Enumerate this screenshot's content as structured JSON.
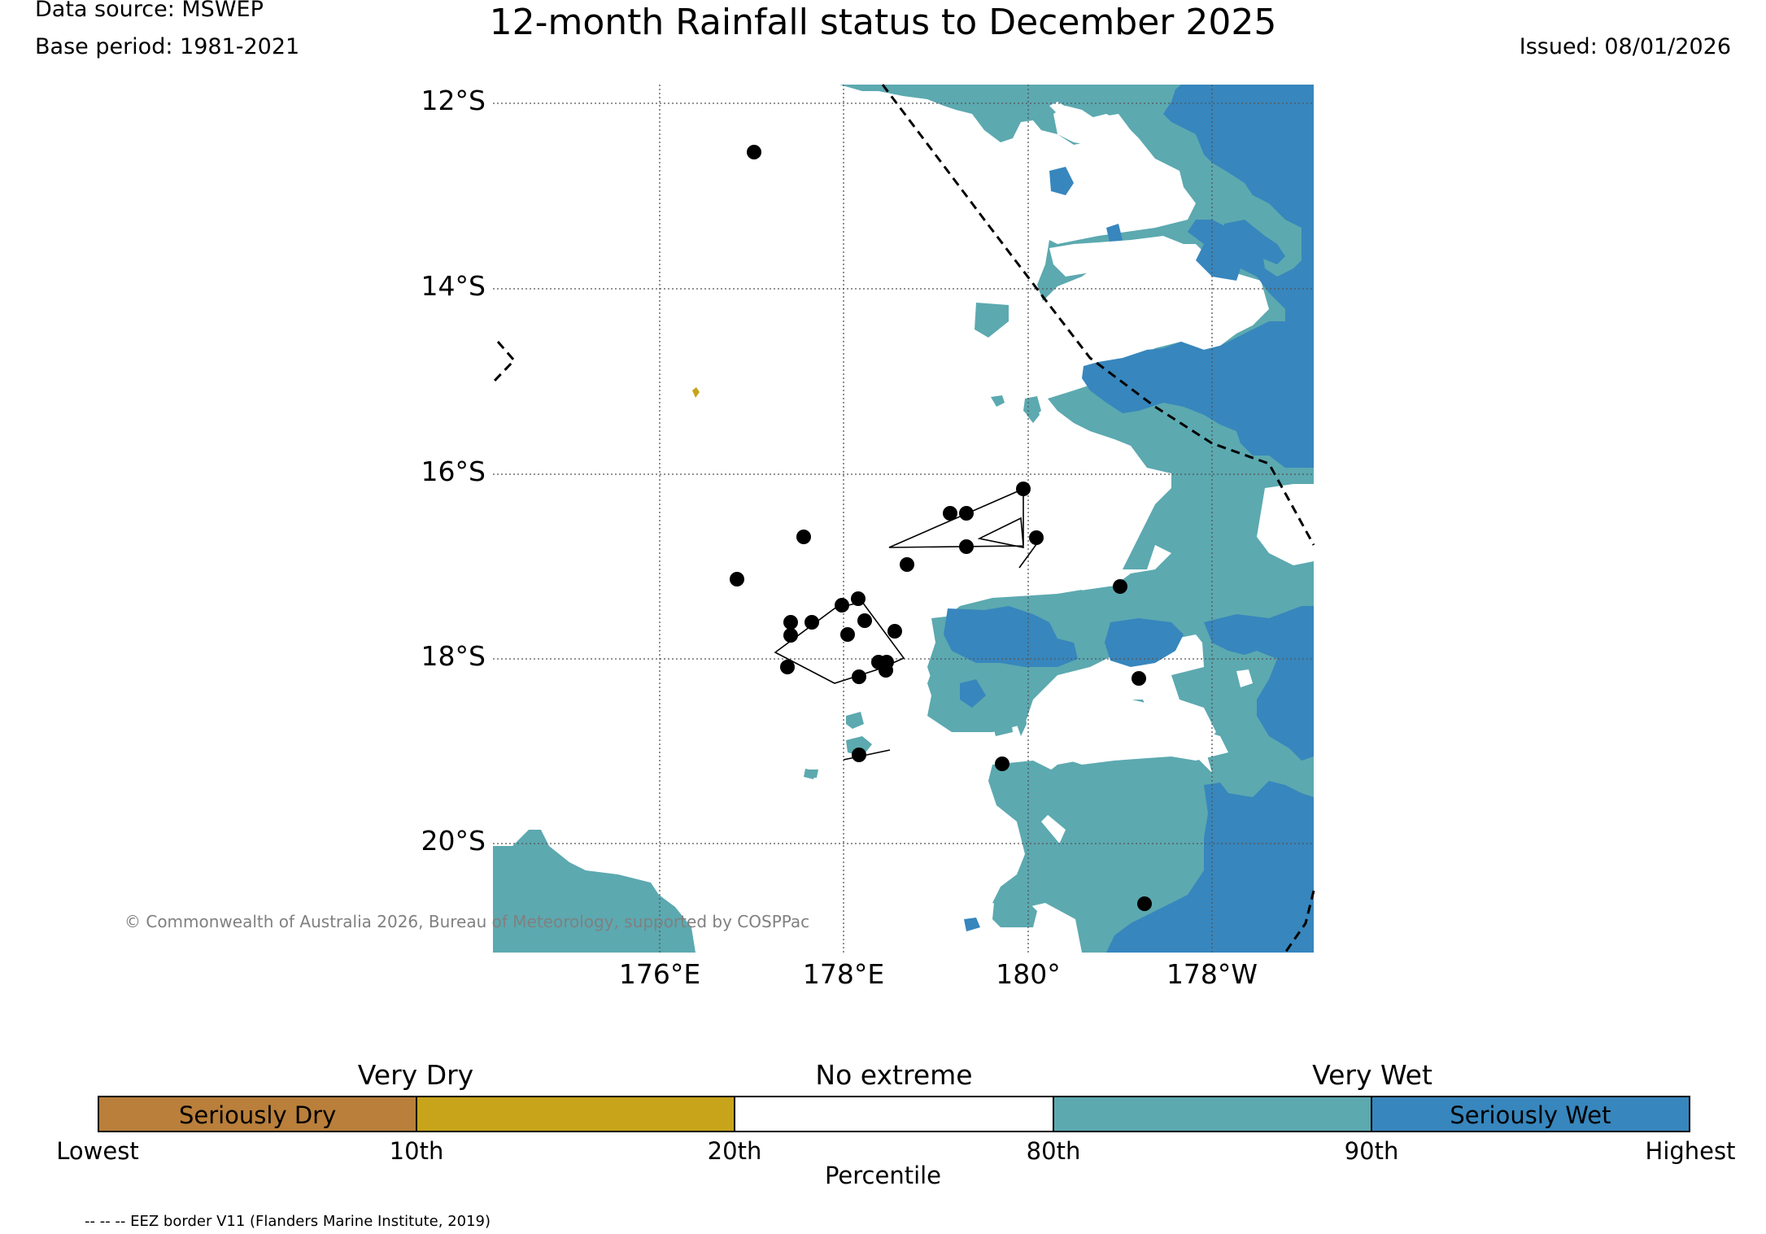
{
  "header": {
    "data_source": "Data source: MSWEP",
    "base_period": "Base period: 1981-2021",
    "title": "12-month Rainfall status to December 2025",
    "issued": "Issued: 08/01/2026"
  },
  "map": {
    "latitude_labels": [
      "12°S",
      "14°S",
      "16°S",
      "18°S",
      "20°S"
    ],
    "longitude_labels": [
      "176°E",
      "178°E",
      "180°",
      "178°W"
    ],
    "copyright": "© Commonwealth of Australia 2026, Bureau of Meteorology, supported by COSPPac",
    "colors": {
      "seriously_dry": "#B97F3B",
      "very_dry": "#C7A41A",
      "no_extreme": "#FFFFFF",
      "very_wet": "#5CA9B0",
      "seriously_wet": "#3786BD"
    }
  },
  "legend": {
    "categories": [
      "Very Dry",
      "No extreme",
      "Very Wet"
    ],
    "segments": [
      {
        "label": "Seriously Dry",
        "color": "#B97F3B"
      },
      {
        "label": "",
        "color": "#C7A41A"
      },
      {
        "label": "",
        "color": "#FFFFFF"
      },
      {
        "label": "",
        "color": "#5CA9B0"
      },
      {
        "label": "Seriously Wet",
        "color": "#3786BD"
      }
    ],
    "ticks": [
      "Lowest",
      "10th",
      "20th",
      "80th",
      "90th",
      "Highest"
    ],
    "axis_label": "Percentile"
  },
  "footer": {
    "eez_note": "-- -- -- EEZ border V11 (Flanders Marine Institute, 2019)"
  }
}
